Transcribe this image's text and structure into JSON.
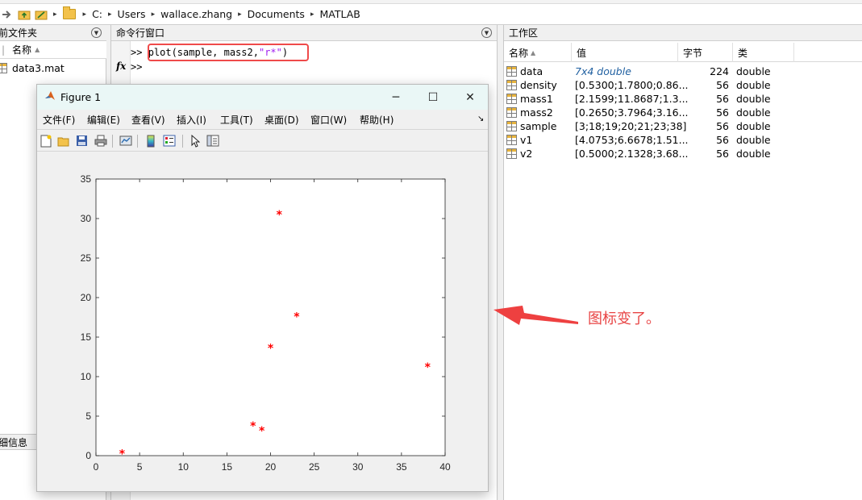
{
  "address_bar": {
    "path": [
      "C:",
      "Users",
      "wallace.zhang",
      "Documents",
      "MATLAB"
    ]
  },
  "left_pane": {
    "title": "前文件夹",
    "column_name": "名称",
    "sort_indicator": "▲",
    "files": [
      {
        "name": "data3.mat"
      }
    ],
    "detail_label": "细信息"
  },
  "command_window": {
    "title": "命令行窗口",
    "prompt": ">>",
    "fx_label": "fx",
    "command_before": "plot(sample, mass2,",
    "command_string": "\"r*\"",
    "command_after": ")"
  },
  "workspace": {
    "title": "工作区",
    "columns": {
      "name": "名称",
      "value": "值",
      "bytes": "字节",
      "class": "类"
    },
    "sort_indicator": "▲",
    "variables": [
      {
        "name": "data",
        "value": "7x4 double",
        "bytes": "224",
        "class": "double",
        "italic": true
      },
      {
        "name": "density",
        "value": "[0.5300;1.7800;0.86...",
        "bytes": "56",
        "class": "double"
      },
      {
        "name": "mass1",
        "value": "[2.1599;11.8687;1.3...",
        "bytes": "56",
        "class": "double"
      },
      {
        "name": "mass2",
        "value": "[0.2650;3.7964;3.16...",
        "bytes": "56",
        "class": "double"
      },
      {
        "name": "sample",
        "value": "[3;18;19;20;21;23;38]",
        "bytes": "56",
        "class": "double"
      },
      {
        "name": "v1",
        "value": "[4.0753;6.6678;1.51...",
        "bytes": "56",
        "class": "double"
      },
      {
        "name": "v2",
        "value": "[0.5000;2.1328;3.68...",
        "bytes": "56",
        "class": "double"
      }
    ]
  },
  "figure": {
    "title": "Figure 1",
    "menu": [
      "文件(F)",
      "编辑(E)",
      "查看(V)",
      "插入(I)",
      "工具(T)",
      "桌面(D)",
      "窗口(W)",
      "帮助(H)"
    ],
    "menu_overflow": "↘",
    "win_minimize": "─",
    "win_maximize": "☐",
    "win_close": "✕"
  },
  "annotation": {
    "text": "图标变了。",
    "color": "#e84545"
  },
  "chart_data": {
    "type": "scatter",
    "marker": "*",
    "color": "#ff0000",
    "x": [
      3,
      18,
      19,
      20,
      21,
      23,
      38
    ],
    "y": [
      0.265,
      3.7964,
      3.16,
      13.6,
      30.5,
      17.6,
      11.2
    ],
    "xlim": [
      0,
      40
    ],
    "ylim": [
      0,
      35
    ],
    "xticks": [
      0,
      5,
      10,
      15,
      20,
      25,
      30,
      35,
      40
    ],
    "yticks": [
      0,
      5,
      10,
      15,
      20,
      25,
      30,
      35
    ],
    "grid": false
  }
}
